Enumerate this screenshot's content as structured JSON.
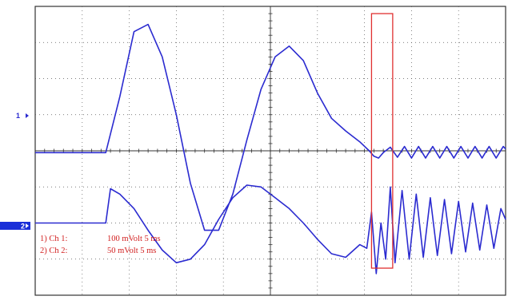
{
  "chart_data": {
    "type": "line",
    "grid": true,
    "x": {
      "divisions": 10
    },
    "y": {
      "divisions": 8
    },
    "channels": [
      {
        "marker": "1",
        "label": "1) Ch 1:",
        "scale": "100 mVolt  5 ms",
        "color": "#2b2bd0"
      },
      {
        "marker": "2",
        "label": "2) Ch 2:",
        "scale": "50 mVolt  5 ms",
        "color": "#2b2bd0"
      }
    ],
    "series": [
      {
        "x": [
          0,
          0.3,
          0.6,
          0.9,
          1.2,
          1.5,
          1.8,
          2.1,
          2.4,
          2.7,
          3.0,
          3.3,
          3.6,
          3.9,
          4.2,
          4.5,
          4.8,
          5.1,
          5.4,
          5.7,
          6.0,
          6.3,
          6.6,
          6.9,
          7.1,
          7.2,
          7.3,
          7.4,
          7.55,
          7.7,
          7.85,
          8.0,
          8.15,
          8.3,
          8.45,
          8.6,
          8.75,
          8.9,
          9.05,
          9.2,
          9.35,
          9.5,
          9.65,
          9.8,
          9.95,
          10.0
        ],
        "values": [
          -0.05,
          -0.05,
          -0.05,
          -0.05,
          -0.05,
          -0.05,
          1.5,
          3.3,
          3.5,
          2.6,
          1.0,
          -0.9,
          -2.2,
          -2.2,
          -1.2,
          0.3,
          1.7,
          2.6,
          2.9,
          2.5,
          1.6,
          0.9,
          0.55,
          0.25,
          0.0,
          -0.15,
          -0.2,
          -0.05,
          0.1,
          -0.18,
          0.12,
          -0.2,
          0.12,
          -0.2,
          0.12,
          -0.2,
          0.12,
          -0.2,
          0.12,
          -0.2,
          0.12,
          -0.2,
          0.12,
          -0.2,
          0.12,
          0.05
        ]
      },
      {
        "x": [
          0,
          0.3,
          0.6,
          0.9,
          1.2,
          1.5,
          1.6,
          1.8,
          2.1,
          2.4,
          2.7,
          3.0,
          3.3,
          3.6,
          3.9,
          4.2,
          4.5,
          4.8,
          5.1,
          5.4,
          5.7,
          6.0,
          6.3,
          6.6,
          6.9,
          7.05,
          7.15,
          7.25,
          7.35,
          7.45,
          7.55,
          7.65,
          7.8,
          7.95,
          8.1,
          8.25,
          8.4,
          8.55,
          8.7,
          8.85,
          9.0,
          9.15,
          9.3,
          9.45,
          9.6,
          9.75,
          9.9,
          10.0
        ],
        "values": [
          -2.0,
          -2.0,
          -2.0,
          -2.0,
          -2.0,
          -2.0,
          -1.05,
          -1.2,
          -1.6,
          -2.2,
          -2.75,
          -3.1,
          -3.0,
          -2.6,
          -1.9,
          -1.3,
          -0.95,
          -1.0,
          -1.3,
          -1.6,
          -2.0,
          -2.45,
          -2.85,
          -2.95,
          -2.6,
          -2.7,
          -1.7,
          -3.4,
          -2.0,
          -3.0,
          -1.0,
          -3.1,
          -1.1,
          -3.0,
          -1.2,
          -2.95,
          -1.3,
          -2.9,
          -1.35,
          -2.85,
          -1.4,
          -2.8,
          -1.45,
          -2.75,
          -1.5,
          -2.7,
          -1.6,
          -1.9
        ]
      }
    ],
    "xlim": [
      0,
      10
    ],
    "ylim": [
      -4,
      4
    ],
    "highlight": {
      "x": [
        7.15,
        7.6
      ],
      "y": [
        -3.25,
        3.8
      ],
      "color": "#e03030"
    }
  }
}
